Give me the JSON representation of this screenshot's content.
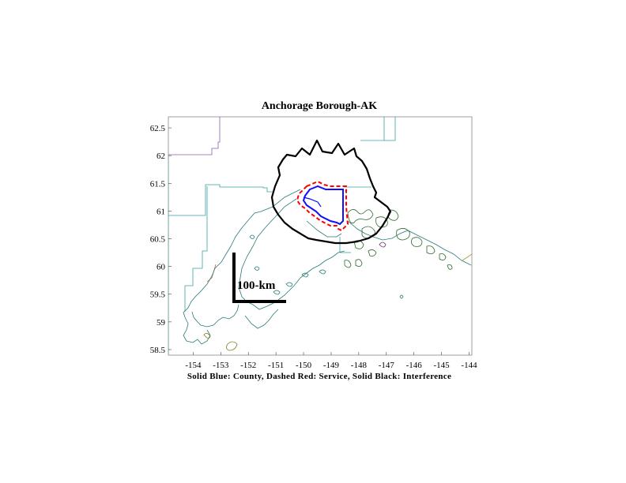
{
  "map": {
    "title": "Anchorage Borough-AK",
    "caption": "Solid Blue: County, Dashed Red: Service, Solid Black: Interference",
    "scale_bar_label": "100-km",
    "x_ticks": [
      "-154",
      "-153",
      "-152",
      "-151",
      "-150",
      "-149",
      "-148",
      "-147",
      "-146",
      "-145",
      "-144"
    ],
    "y_ticks": [
      "62.5",
      "62",
      "61.5",
      "61",
      "60.5",
      "60",
      "59.5",
      "59",
      "58.5"
    ],
    "xlim": [
      -154.9,
      -143.9
    ],
    "ylim": [
      58.4,
      62.7
    ],
    "colors": {
      "county": "#1010ff",
      "service": "#ff0000",
      "interference": "#000000",
      "coast": "#2a7a7a",
      "boundaries": "#3aa0a0"
    }
  }
}
